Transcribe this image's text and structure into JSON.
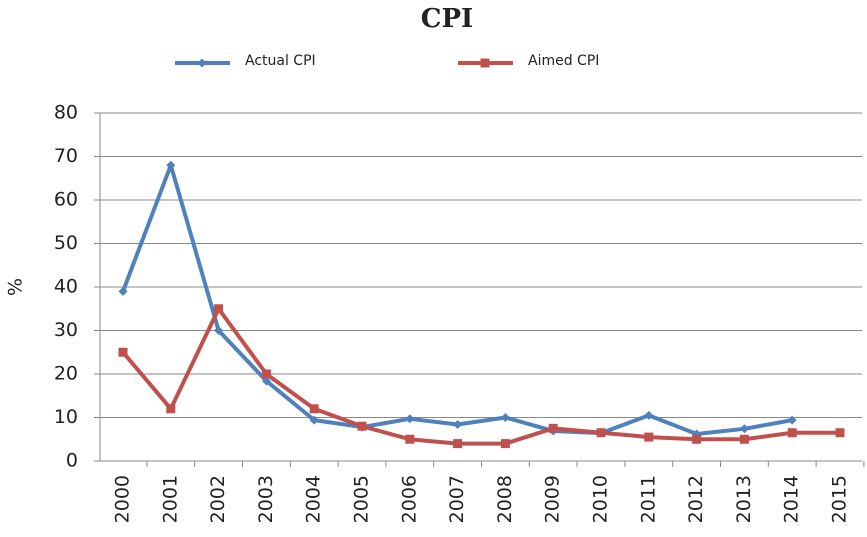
{
  "chart_data": {
    "type": "line",
    "title": "CPI",
    "y_label": "%",
    "categories": [
      "2000",
      "2001",
      "2002",
      "2003",
      "2004",
      "2005",
      "2006",
      "2007",
      "2008",
      "2009",
      "2010",
      "2011",
      "2012",
      "2013",
      "2014",
      "2015"
    ],
    "series": [
      {
        "name": "Actual CPI",
        "color": "#4f81bd",
        "marker": "diamond",
        "values": [
          39,
          68,
          30,
          18.4,
          9.4,
          7.8,
          9.7,
          8.4,
          10,
          6.9,
          6.4,
          10.5,
          6.2,
          7.4,
          9.4,
          null
        ]
      },
      {
        "name": "Aimed CPI",
        "color": "#c0504d",
        "marker": "square",
        "values": [
          25,
          12,
          35,
          20,
          12,
          8,
          5,
          4,
          4,
          7.5,
          6.5,
          5.5,
          5,
          5,
          6.5,
          6.5
        ]
      }
    ],
    "ylim": [
      0,
      80
    ],
    "yticks": [
      0,
      10,
      20,
      30,
      40,
      50,
      60,
      70,
      80
    ],
    "grid": true,
    "legend": "top"
  }
}
